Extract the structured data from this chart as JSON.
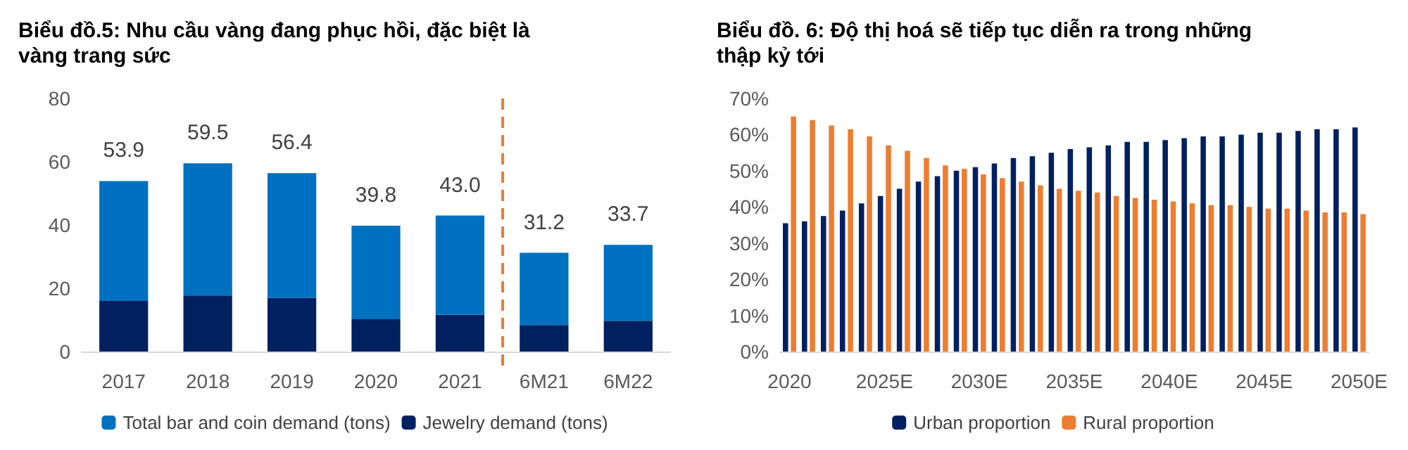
{
  "chart_data": [
    {
      "type": "bar",
      "title": "Biểu đồ.5: Nhu cầu vàng đang phục hồi, đặc biệt là vàng trang sức",
      "categories": [
        "2017",
        "2018",
        "2019",
        "2020",
        "2021",
        "6M21",
        "6M22"
      ],
      "stacked": true,
      "legend": "bottom",
      "ylim": [
        0,
        80
      ],
      "yticks": [
        0,
        20,
        40,
        60,
        80
      ],
      "series": [
        {
          "name": "Jewelry demand (tons)",
          "color": "#002060",
          "values": [
            16.0,
            17.7,
            17.0,
            10.2,
            11.6,
            8.4,
            9.7
          ]
        },
        {
          "name": "Total bar and coin demand (tons)",
          "color": "#0070c0",
          "values": [
            37.9,
            41.8,
            39.4,
            29.6,
            31.4,
            22.8,
            24.0
          ]
        }
      ],
      "totals": [
        "53.9",
        "59.5",
        "56.4",
        "39.8",
        "43.0",
        "31.2",
        "33.7"
      ]
    },
    {
      "type": "bar",
      "title": "Biểu đồ. 6: Độ thị hoá sẽ tiếp tục diễn ra trong những thập kỷ tới",
      "categories": [
        "2020",
        null,
        null,
        null,
        null,
        "2025E",
        null,
        null,
        null,
        null,
        "2030E",
        null,
        null,
        null,
        null,
        "2035E",
        null,
        null,
        null,
        null,
        "2040E",
        null,
        null,
        null,
        null,
        "2045E",
        null,
        null,
        null,
        null,
        "2050E"
      ],
      "legend": "bottom",
      "ylim": [
        0,
        70
      ],
      "yticks": [
        {
          "value": 0,
          "label": "0%"
        },
        {
          "value": 10,
          "label": "10%"
        },
        {
          "value": 20,
          "label": "20%"
        },
        {
          "value": 30,
          "label": "30%"
        },
        {
          "value": 40,
          "label": "40%"
        },
        {
          "value": 50,
          "label": "50%"
        },
        {
          "value": 60,
          "label": "60%"
        },
        {
          "value": 70,
          "label": "70%"
        }
      ],
      "series": [
        {
          "name": "Urban proportion",
          "color": "#002060",
          "values": [
            35.5,
            36,
            37.5,
            39,
            41,
            43,
            45,
            47,
            48.5,
            50,
            51,
            52,
            53.5,
            54,
            55,
            56,
            56.5,
            57,
            58,
            58,
            58.5,
            59,
            59.5,
            59.5,
            60,
            60.5,
            60.5,
            61,
            61.5,
            61.5,
            62
          ]
        },
        {
          "name": "Rural proportion",
          "color": "#ed7d31",
          "values": [
            65,
            64,
            62.5,
            61.5,
            59.5,
            57,
            55.5,
            53.5,
            51.5,
            50.5,
            49,
            48,
            47,
            46,
            45,
            44.5,
            44,
            43,
            42.5,
            42,
            41.5,
            41,
            40.5,
            40.5,
            40,
            39.5,
            39.5,
            39,
            38.5,
            38.5,
            38
          ]
        }
      ]
    }
  ]
}
